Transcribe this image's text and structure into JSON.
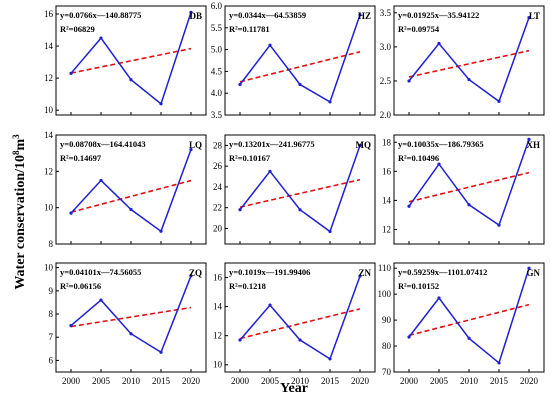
{
  "figure": {
    "xlabel": "Year",
    "ylabel_prefix": "Water conservation/10",
    "ylabel_sup1": "8",
    "ylabel_unit": "m",
    "ylabel_sup2": "3"
  },
  "colors": {
    "series": "#1f1fd6",
    "trend": "#e01010",
    "frame": "#000000"
  },
  "chart_data": [
    {
      "type": "line",
      "code": "DB",
      "x": [
        2000,
        2005,
        2010,
        2015,
        2020
      ],
      "values": [
        12.3,
        14.5,
        11.9,
        10.4,
        16.1
      ],
      "equation": "y=0.0766x—140.88775",
      "r2": "R²=06829",
      "trend": {
        "slope": 0.0766,
        "intercept": -140.88775
      },
      "ylim": [
        9.7,
        16.5
      ],
      "yticks": [
        10,
        12,
        14,
        16
      ],
      "grid": false
    },
    {
      "type": "line",
      "code": "HZ",
      "x": [
        2000,
        2005,
        2010,
        2015,
        2020
      ],
      "values": [
        4.2,
        5.1,
        4.2,
        3.8,
        5.8
      ],
      "equation": "y=0.0344x—64.53859",
      "r2": "R²=0.11781",
      "trend": {
        "slope": 0.0344,
        "intercept": -64.53859
      },
      "ylim": [
        3.5,
        6.0
      ],
      "yticks": [
        3.5,
        4.0,
        4.5,
        5.0,
        5.5,
        6.0
      ],
      "grid": false
    },
    {
      "type": "line",
      "code": "LT",
      "x": [
        2000,
        2005,
        2010,
        2015,
        2020
      ],
      "values": [
        2.5,
        3.05,
        2.52,
        2.2,
        3.43
      ],
      "equation": "y=0.01925x—35.94122",
      "r2": "R²=0.09754",
      "trend": {
        "slope": 0.01925,
        "intercept": -35.94122
      },
      "ylim": [
        2.0,
        3.6
      ],
      "yticks": [
        2.0,
        2.5,
        3.0,
        3.5
      ],
      "grid": false
    },
    {
      "type": "line",
      "code": "LQ",
      "x": [
        2000,
        2005,
        2010,
        2015,
        2020
      ],
      "values": [
        9.7,
        11.5,
        9.9,
        8.7,
        13.2
      ],
      "equation": "y=0.08708x—164.41043",
      "r2": "R²=0.14697",
      "trend": {
        "slope": 0.08708,
        "intercept": -164.41043
      },
      "ylim": [
        8,
        14
      ],
      "yticks": [
        8,
        10,
        12,
        14
      ],
      "grid": false
    },
    {
      "type": "line",
      "code": "MQ",
      "x": [
        2000,
        2005,
        2010,
        2015,
        2020
      ],
      "values": [
        21.8,
        25.5,
        21.8,
        19.7,
        28.0
      ],
      "equation": "y=0.13201x—241.96775",
      "r2": "R²=0.10167",
      "trend": {
        "slope": 0.13201,
        "intercept": -241.96775
      },
      "ylim": [
        18.5,
        29
      ],
      "yticks": [
        20,
        22,
        24,
        26,
        28
      ],
      "grid": false
    },
    {
      "type": "line",
      "code": "XH",
      "x": [
        2000,
        2005,
        2010,
        2015,
        2020
      ],
      "values": [
        13.6,
        16.5,
        13.7,
        12.3,
        18.2
      ],
      "equation": "y=0.10035x—186.79365",
      "r2": "R²=0.10496",
      "trend": {
        "slope": 0.10035,
        "intercept": -186.79365
      },
      "ylim": [
        11,
        18.5
      ],
      "yticks": [
        12,
        14,
        16,
        18
      ],
      "grid": false
    },
    {
      "type": "line",
      "code": "ZQ",
      "x": [
        2000,
        2005,
        2010,
        2015,
        2020
      ],
      "values": [
        7.5,
        8.6,
        7.15,
        6.35,
        9.65
      ],
      "equation": "y=0.04101x—74.56055",
      "r2": "R²=0.06156",
      "trend": {
        "slope": 0.04101,
        "intercept": -74.56055
      },
      "ylim": [
        5.5,
        10.2
      ],
      "yticks": [
        6,
        7,
        8,
        9,
        10
      ],
      "grid": false
    },
    {
      "type": "line",
      "code": "ZN",
      "x": [
        2000,
        2005,
        2010,
        2015,
        2020
      ],
      "values": [
        11.7,
        14.1,
        11.7,
        10.4,
        16.1
      ],
      "equation": "y=0.1019x—191.99406",
      "r2": "R²=0.1218",
      "trend": {
        "slope": 0.1019,
        "intercept": -191.99406
      },
      "ylim": [
        9.5,
        17
      ],
      "yticks": [
        10,
        12,
        14,
        16
      ],
      "grid": false
    },
    {
      "type": "line",
      "code": "GN",
      "x": [
        2000,
        2005,
        2010,
        2015,
        2020
      ],
      "values": [
        83.5,
        98.5,
        83,
        73.5,
        110
      ],
      "equation": "y=0.59259x—1101.07412",
      "r2": "R²=0.10152",
      "trend": {
        "slope": 0.59259,
        "intercept": -1101.07412
      },
      "ylim": [
        70,
        112
      ],
      "yticks": [
        70,
        80,
        90,
        100,
        110
      ],
      "grid": false
    }
  ]
}
